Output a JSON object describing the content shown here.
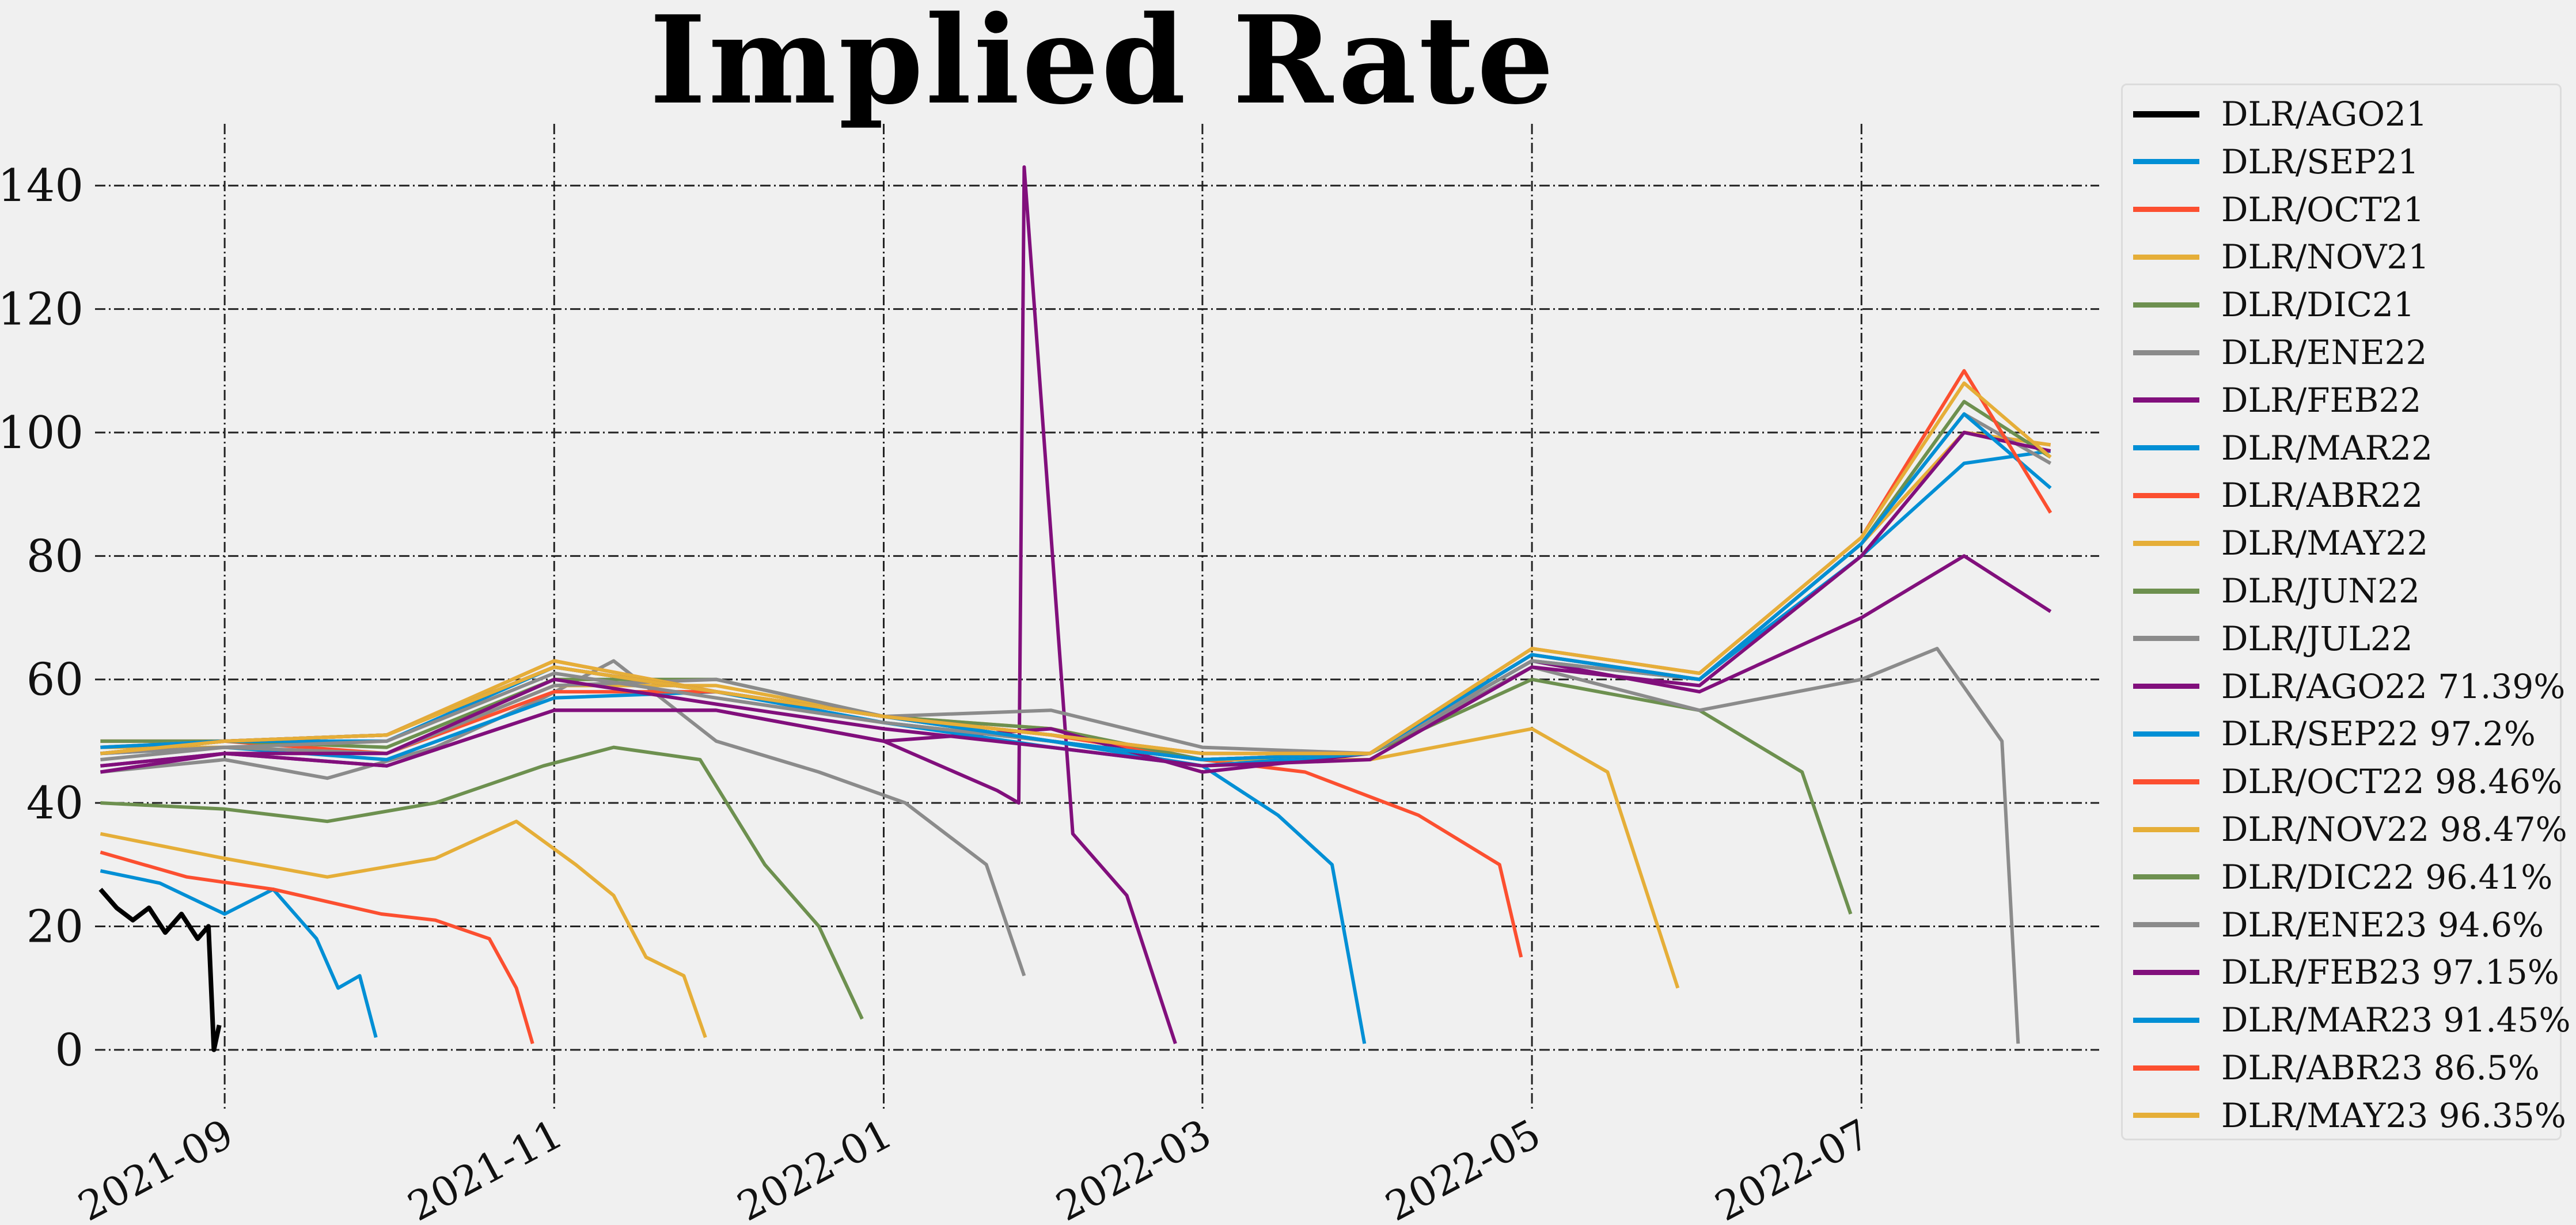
{
  "chart_data": {
    "type": "line",
    "title": "Implied Rate",
    "xlabel": "",
    "ylabel": "",
    "grid": true,
    "legend_position": "right",
    "xlim": [
      "2021-08-08",
      "2022-08-14"
    ],
    "ylim": [
      -10,
      150
    ],
    "y_ticks": [
      0,
      20,
      40,
      60,
      80,
      100,
      120,
      140
    ],
    "x_ticks": [
      "2021-09",
      "2021-11",
      "2022-01",
      "2022-03",
      "2022-05",
      "2022-07"
    ],
    "series": [
      {
        "name": "DLR/AGO21",
        "color": "#000000",
        "x": [
          "2021-08-09",
          "2021-08-12",
          "2021-08-15",
          "2021-08-18",
          "2021-08-21",
          "2021-08-24",
          "2021-08-27",
          "2021-08-29",
          "2021-08-30",
          "2021-08-31"
        ],
        "y": [
          26,
          23,
          21,
          23,
          19,
          22,
          18,
          20,
          0,
          4
        ]
      },
      {
        "name": "DLR/SEP21",
        "color": "#008fd5",
        "x": [
          "2021-08-09",
          "2021-08-20",
          "2021-09-01",
          "2021-09-10",
          "2021-09-18",
          "2021-09-22",
          "2021-09-26",
          "2021-09-29"
        ],
        "y": [
          29,
          27,
          22,
          26,
          18,
          10,
          12,
          2
        ]
      },
      {
        "name": "DLR/OCT21",
        "color": "#fc4f30",
        "x": [
          "2021-08-09",
          "2021-08-25",
          "2021-09-10",
          "2021-09-30",
          "2021-10-10",
          "2021-10-20",
          "2021-10-25",
          "2021-10-28"
        ],
        "y": [
          32,
          28,
          26,
          22,
          21,
          18,
          10,
          1
        ]
      },
      {
        "name": "DLR/NOV21",
        "color": "#e5ae38",
        "x": [
          "2021-08-09",
          "2021-09-01",
          "2021-09-20",
          "2021-10-10",
          "2021-10-25",
          "2021-11-05",
          "2021-11-12",
          "2021-11-18",
          "2021-11-25",
          "2021-11-29"
        ],
        "y": [
          35,
          31,
          28,
          31,
          37,
          30,
          25,
          15,
          12,
          2
        ]
      },
      {
        "name": "DLR/DIC21",
        "color": "#6d904f",
        "x": [
          "2021-08-09",
          "2021-09-01",
          "2021-09-20",
          "2021-10-10",
          "2021-10-30",
          "2021-11-12",
          "2021-11-28",
          "2021-12-10",
          "2021-12-20",
          "2021-12-28"
        ],
        "y": [
          40,
          39,
          37,
          40,
          46,
          49,
          47,
          30,
          20,
          5
        ]
      },
      {
        "name": "DLR/ENE22",
        "color": "#8b8b8b",
        "x": [
          "2021-08-09",
          "2021-09-01",
          "2021-09-20",
          "2021-10-10",
          "2021-10-30",
          "2021-11-12",
          "2021-12-01",
          "2021-12-20",
          "2022-01-05",
          "2022-01-20",
          "2022-01-27"
        ],
        "y": [
          45,
          47,
          44,
          49,
          57,
          63,
          50,
          45,
          40,
          30,
          12
        ]
      },
      {
        "name": "DLR/FEB22",
        "color": "#810f7c",
        "x": [
          "2021-08-09",
          "2021-09-01",
          "2021-10-01",
          "2021-11-01",
          "2021-12-01",
          "2022-01-01",
          "2022-01-22",
          "2022-01-26",
          "2022-01-27",
          "2022-02-05",
          "2022-02-15",
          "2022-02-24"
        ],
        "y": [
          46,
          48,
          46,
          55,
          55,
          50,
          42,
          40,
          143,
          35,
          25,
          1
        ]
      },
      {
        "name": "DLR/MAR22",
        "color": "#008fd5",
        "x": [
          "2021-08-09",
          "2021-09-01",
          "2021-10-01",
          "2021-11-01",
          "2021-12-01",
          "2022-01-01",
          "2022-02-01",
          "2022-03-01",
          "2022-03-15",
          "2022-03-25",
          "2022-03-31"
        ],
        "y": [
          48,
          49,
          47,
          57,
          58,
          53,
          50,
          46,
          38,
          30,
          1
        ]
      },
      {
        "name": "DLR/ABR22",
        "color": "#fc4f30",
        "x": [
          "2021-08-09",
          "2021-09-01",
          "2021-10-01",
          "2021-11-01",
          "2021-12-01",
          "2022-01-01",
          "2022-02-01",
          "2022-03-01",
          "2022-03-20",
          "2022-04-10",
          "2022-04-25",
          "2022-04-29"
        ],
        "y": [
          50,
          50,
          48,
          58,
          58,
          54,
          51,
          47,
          45,
          38,
          30,
          15
        ]
      },
      {
        "name": "DLR/MAY22",
        "color": "#e5ae38",
        "x": [
          "2021-08-09",
          "2021-09-01",
          "2021-10-01",
          "2021-11-01",
          "2021-12-01",
          "2022-01-01",
          "2022-02-01",
          "2022-03-01",
          "2022-04-01",
          "2022-05-01",
          "2022-05-15",
          "2022-05-28"
        ],
        "y": [
          49,
          49,
          48,
          59,
          59,
          54,
          52,
          47,
          47,
          52,
          45,
          10
        ]
      },
      {
        "name": "DLR/JUN22",
        "color": "#6d904f",
        "x": [
          "2021-08-09",
          "2021-09-01",
          "2021-10-01",
          "2021-11-01",
          "2021-12-01",
          "2022-01-01",
          "2022-02-01",
          "2022-03-01",
          "2022-04-01",
          "2022-05-01",
          "2022-06-01",
          "2022-06-20",
          "2022-06-29"
        ],
        "y": [
          50,
          50,
          49,
          60,
          60,
          54,
          52,
          47,
          48,
          60,
          55,
          45,
          22
        ]
      },
      {
        "name": "DLR/JUL22",
        "color": "#8b8b8b",
        "x": [
          "2021-08-09",
          "2021-09-01",
          "2021-10-01",
          "2021-11-01",
          "2021-12-01",
          "2022-01-01",
          "2022-02-01",
          "2022-03-01",
          "2022-04-01",
          "2022-05-01",
          "2022-06-01",
          "2022-07-01",
          "2022-07-15",
          "2022-07-27",
          "2022-07-30"
        ],
        "y": [
          48,
          49,
          48,
          59,
          60,
          54,
          55,
          49,
          48,
          62,
          55,
          60,
          65,
          50,
          1
        ]
      },
      {
        "name": "DLR/AGO22 71.39%",
        "color": "#810f7c",
        "x": [
          "2021-08-09",
          "2021-09-01",
          "2021-10-01",
          "2021-11-01",
          "2021-12-01",
          "2022-01-01",
          "2022-02-01",
          "2022-03-01",
          "2022-04-01",
          "2022-05-01",
          "2022-06-01",
          "2022-07-01",
          "2022-07-20",
          "2022-08-05"
        ],
        "y": [
          45,
          48,
          46,
          55,
          55,
          50,
          52,
          45,
          48,
          63,
          58,
          70,
          80,
          71
        ]
      },
      {
        "name": "DLR/SEP22 97.2%",
        "color": "#008fd5",
        "x": [
          "2021-08-09",
          "2021-09-01",
          "2021-10-01",
          "2021-11-01",
          "2021-12-01",
          "2022-01-01",
          "2022-02-01",
          "2022-03-01",
          "2022-04-01",
          "2022-05-01",
          "2022-06-01",
          "2022-07-01",
          "2022-07-20",
          "2022-08-05"
        ],
        "y": [
          48,
          50,
          50,
          62,
          58,
          53,
          49,
          46,
          48,
          63,
          60,
          80,
          95,
          97
        ]
      },
      {
        "name": "DLR/OCT22 98.46%",
        "color": "#fc4f30",
        "x": [
          "2021-08-09",
          "2021-09-01",
          "2021-10-01",
          "2021-11-01",
          "2021-12-01",
          "2022-01-01",
          "2022-02-01",
          "2022-03-01",
          "2022-04-01",
          "2022-05-01",
          "2022-06-01",
          "2022-07-01",
          "2022-07-20",
          "2022-08-05"
        ],
        "y": [
          49,
          50,
          51,
          63,
          58,
          54,
          50,
          47,
          48,
          64,
          60,
          82,
          100,
          98
        ]
      },
      {
        "name": "DLR/NOV22 98.47%",
        "color": "#e5ae38",
        "x": [
          "2021-08-09",
          "2021-09-01",
          "2021-10-01",
          "2021-11-01",
          "2021-12-01",
          "2022-01-01",
          "2022-02-01",
          "2022-03-01",
          "2022-04-01",
          "2022-05-01",
          "2022-06-01",
          "2022-07-01",
          "2022-07-20",
          "2022-08-05"
        ],
        "y": [
          49,
          50,
          51,
          63,
          58,
          54,
          50,
          47,
          48,
          64,
          60,
          82,
          100,
          98
        ]
      },
      {
        "name": "DLR/DIC22 96.41%",
        "color": "#6d904f",
        "x": [
          "2021-08-09",
          "2021-09-01",
          "2021-10-01",
          "2021-11-01",
          "2021-12-01",
          "2022-01-01",
          "2022-02-01",
          "2022-03-01",
          "2022-04-01",
          "2022-05-01",
          "2022-06-01",
          "2022-07-01",
          "2022-07-20",
          "2022-08-05"
        ],
        "y": [
          48,
          50,
          51,
          62,
          58,
          54,
          50,
          47,
          48,
          64,
          60,
          82,
          105,
          96
        ]
      },
      {
        "name": "DLR/ENE23 94.6%",
        "color": "#8b8b8b",
        "x": [
          "2021-08-09",
          "2021-09-01",
          "2021-10-01",
          "2021-11-01",
          "2021-12-01",
          "2022-01-01",
          "2022-02-01",
          "2022-03-01",
          "2022-04-01",
          "2022-05-01",
          "2022-06-01",
          "2022-07-01",
          "2022-07-20",
          "2022-08-05"
        ],
        "y": [
          47,
          49,
          50,
          61,
          57,
          53,
          50,
          47,
          48,
          63,
          60,
          82,
          103,
          95
        ]
      },
      {
        "name": "DLR/FEB23 97.15%",
        "color": "#810f7c",
        "x": [
          "2021-08-09",
          "2021-09-01",
          "2021-10-01",
          "2021-11-01",
          "2021-12-01",
          "2022-01-01",
          "2022-02-01",
          "2022-03-01",
          "2022-04-01",
          "2022-05-01",
          "2022-06-01",
          "2022-07-01",
          "2022-07-20",
          "2022-08-05"
        ],
        "y": [
          46,
          48,
          48,
          60,
          56,
          52,
          49,
          46,
          47,
          62,
          59,
          80,
          100,
          97
        ]
      },
      {
        "name": "DLR/MAR23 91.45%",
        "color": "#008fd5",
        "x": [
          "2021-08-09",
          "2021-09-01",
          "2021-10-01",
          "2021-11-01",
          "2021-12-01",
          "2022-01-01",
          "2022-02-01",
          "2022-03-01",
          "2022-04-01",
          "2022-05-01",
          "2022-06-01",
          "2022-07-01",
          "2022-07-20",
          "2022-08-05"
        ],
        "y": [
          49,
          50,
          51,
          62,
          58,
          54,
          50,
          47,
          48,
          64,
          60,
          82,
          103,
          91
        ]
      },
      {
        "name": "DLR/ABR23 86.5%",
        "color": "#fc4f30",
        "x": [
          "2021-08-09",
          "2021-09-01",
          "2021-10-01",
          "2021-11-01",
          "2021-12-01",
          "2022-01-01",
          "2022-02-01",
          "2022-03-01",
          "2022-04-01",
          "2022-05-01",
          "2022-06-01",
          "2022-07-01",
          "2022-07-20",
          "2022-08-05"
        ],
        "y": [
          48,
          50,
          51,
          62,
          58,
          54,
          51,
          48,
          48,
          65,
          61,
          83,
          110,
          87
        ]
      },
      {
        "name": "DLR/MAY23 96.35%",
        "color": "#e5ae38",
        "x": [
          "2021-08-09",
          "2021-09-01",
          "2021-10-01",
          "2021-11-01",
          "2021-12-01",
          "2022-01-01",
          "2022-02-01",
          "2022-03-01",
          "2022-04-01",
          "2022-05-01",
          "2022-06-01",
          "2022-07-01",
          "2022-07-20",
          "2022-08-05"
        ],
        "y": [
          48,
          50,
          51,
          62,
          58,
          54,
          51,
          48,
          48,
          65,
          61,
          83,
          108,
          96
        ]
      }
    ]
  }
}
